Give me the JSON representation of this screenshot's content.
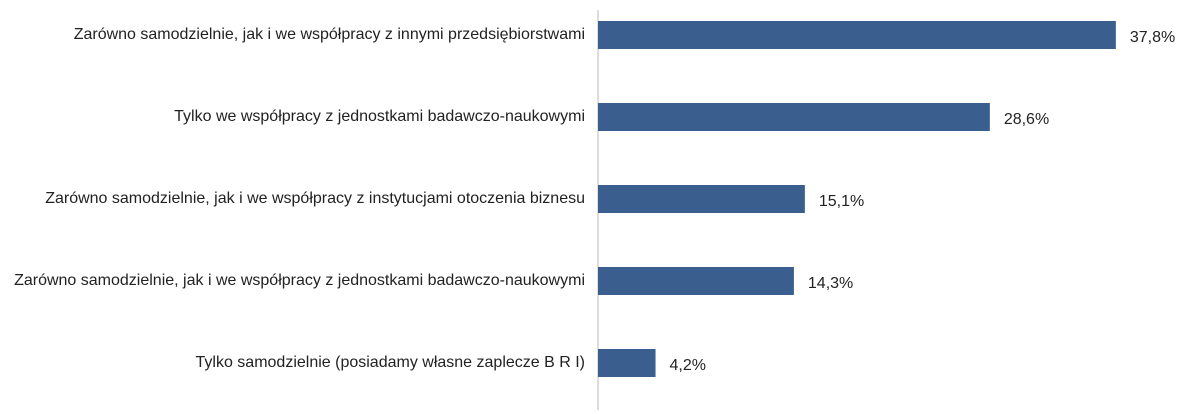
{
  "chart_data": {
    "type": "bar",
    "orientation": "horizontal",
    "categories": [
      "Zarówno samodzielnie, jak i we współpracy z innymi przedsiębiorstwami",
      "Tylko we współpracy z jednostkami badawczo-naukowymi",
      "Zarówno samodzielnie, jak i we współpracy z instytucjami otoczenia biznesu",
      "Zarówno samodzielnie, jak i we współpracy z jednostkami badawczo-naukowymi",
      "Tylko samodzielnie (posiadamy własne zaplecze B R I)"
    ],
    "values": [
      37.8,
      28.6,
      15.1,
      14.3,
      4.2
    ],
    "value_labels": [
      "37,8%",
      "28,6%",
      "15,1%",
      "14,3%",
      "4,2%"
    ],
    "color": "#3a5f8f",
    "xlim": [
      0,
      40
    ]
  }
}
